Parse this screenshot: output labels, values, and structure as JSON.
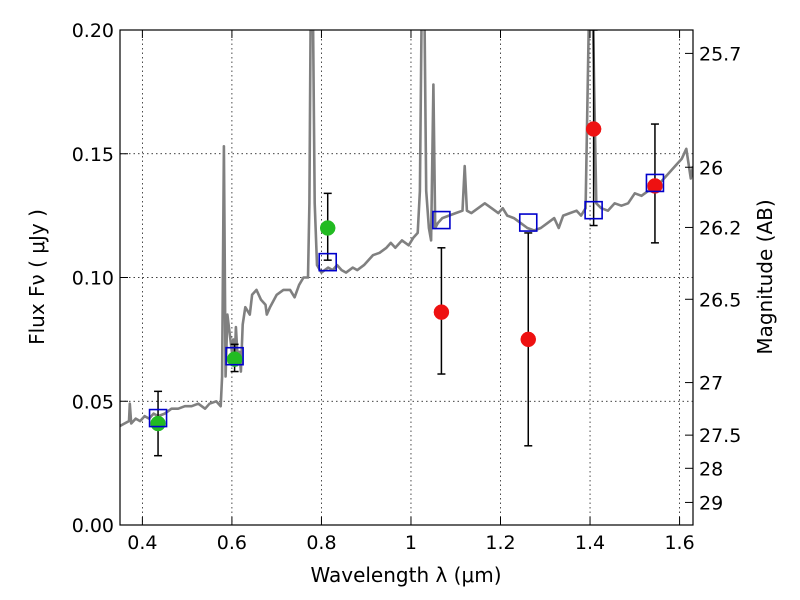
{
  "chart_data": {
    "type": "scatter",
    "xlabel": "Wavelength  λ (μm)",
    "ylabel": "Flux  Fν  ( μJy )",
    "ylabel_right": "Magnitude (AB)",
    "xlim": [
      0.35,
      1.63
    ],
    "ylim": [
      0.0,
      0.2
    ],
    "grid": true,
    "x_ticks": [
      {
        "value": 0.4,
        "label": "0.4"
      },
      {
        "value": 0.6,
        "label": "0.6"
      },
      {
        "value": 0.8,
        "label": "0.8"
      },
      {
        "value": 1.0,
        "label": "1"
      },
      {
        "value": 1.2,
        "label": "1.2"
      },
      {
        "value": 1.4,
        "label": "1.4"
      },
      {
        "value": 1.6,
        "label": "1.6"
      }
    ],
    "y_ticks": [
      {
        "value": 0.0,
        "label": "0.00"
      },
      {
        "value": 0.05,
        "label": "0.05"
      },
      {
        "value": 0.1,
        "label": "0.10"
      },
      {
        "value": 0.15,
        "label": "0.15"
      },
      {
        "value": 0.2,
        "label": "0.20"
      }
    ],
    "mag_ticks": [
      {
        "mag": 25.7,
        "label": "25.7"
      },
      {
        "mag": 26.0,
        "label": "26"
      },
      {
        "mag": 26.2,
        "label": "26.2"
      },
      {
        "mag": 26.5,
        "label": "26.5"
      },
      {
        "mag": 27.0,
        "label": "27"
      },
      {
        "mag": 27.5,
        "label": "27.5"
      },
      {
        "mag": 28.0,
        "label": "28"
      },
      {
        "mag": 29.0,
        "label": "29"
      }
    ],
    "template_spectrum": {
      "color": "#808080",
      "points": [
        [
          0.35,
          0.04
        ],
        [
          0.36,
          0.041
        ],
        [
          0.37,
          0.042
        ],
        [
          0.372,
          0.049
        ],
        [
          0.375,
          0.041
        ],
        [
          0.385,
          0.043
        ],
        [
          0.395,
          0.042
        ],
        [
          0.405,
          0.044
        ],
        [
          0.415,
          0.043
        ],
        [
          0.425,
          0.045
        ],
        [
          0.435,
          0.044
        ],
        [
          0.45,
          0.045
        ],
        [
          0.465,
          0.047
        ],
        [
          0.48,
          0.047
        ],
        [
          0.495,
          0.048
        ],
        [
          0.51,
          0.048
        ],
        [
          0.525,
          0.049
        ],
        [
          0.54,
          0.047
        ],
        [
          0.55,
          0.049
        ],
        [
          0.565,
          0.05
        ],
        [
          0.575,
          0.048
        ],
        [
          0.578,
          0.06
        ],
        [
          0.582,
          0.153
        ],
        [
          0.586,
          0.06
        ],
        [
          0.59,
          0.085
        ],
        [
          0.6,
          0.07
        ],
        [
          0.603,
          0.075
        ],
        [
          0.606,
          0.065
        ],
        [
          0.609,
          0.08
        ],
        [
          0.612,
          0.07
        ],
        [
          0.617,
          0.07
        ],
        [
          0.62,
          0.062
        ],
        [
          0.624,
          0.081
        ],
        [
          0.63,
          0.088
        ],
        [
          0.64,
          0.085
        ],
        [
          0.645,
          0.093
        ],
        [
          0.655,
          0.095
        ],
        [
          0.665,
          0.091
        ],
        [
          0.675,
          0.089
        ],
        [
          0.678,
          0.085
        ],
        [
          0.685,
          0.088
        ],
        [
          0.7,
          0.093
        ],
        [
          0.715,
          0.095
        ],
        [
          0.73,
          0.095
        ],
        [
          0.74,
          0.092
        ],
        [
          0.75,
          0.097
        ],
        [
          0.76,
          0.1
        ],
        [
          0.77,
          0.1
        ],
        [
          0.773,
          0.13
        ],
        [
          0.776,
          0.21
        ],
        [
          0.781,
          0.21
        ],
        [
          0.785,
          0.13
        ],
        [
          0.79,
          0.105
        ],
        [
          0.8,
          0.102
        ],
        [
          0.815,
          0.104
        ],
        [
          0.825,
          0.103
        ],
        [
          0.835,
          0.105
        ],
        [
          0.845,
          0.103
        ],
        [
          0.855,
          0.102
        ],
        [
          0.87,
          0.104
        ],
        [
          0.88,
          0.103
        ],
        [
          0.895,
          0.105
        ],
        [
          0.905,
          0.107
        ],
        [
          0.915,
          0.109
        ],
        [
          0.93,
          0.11
        ],
        [
          0.945,
          0.112
        ],
        [
          0.955,
          0.114
        ],
        [
          0.965,
          0.112
        ],
        [
          0.98,
          0.115
        ],
        [
          0.995,
          0.113
        ],
        [
          1.005,
          0.116
        ],
        [
          1.015,
          0.118
        ],
        [
          1.02,
          0.135
        ],
        [
          1.024,
          0.21
        ],
        [
          1.03,
          0.21
        ],
        [
          1.034,
          0.135
        ],
        [
          1.04,
          0.12
        ],
        [
          1.045,
          0.115
        ],
        [
          1.05,
          0.178
        ],
        [
          1.054,
          0.12
        ],
        [
          1.06,
          0.122
        ],
        [
          1.07,
          0.124
        ],
        [
          1.085,
          0.125
        ],
        [
          1.1,
          0.126
        ],
        [
          1.115,
          0.127
        ],
        [
          1.12,
          0.145
        ],
        [
          1.125,
          0.127
        ],
        [
          1.135,
          0.126
        ],
        [
          1.15,
          0.128
        ],
        [
          1.165,
          0.13
        ],
        [
          1.18,
          0.128
        ],
        [
          1.195,
          0.126
        ],
        [
          1.205,
          0.128
        ],
        [
          1.215,
          0.125
        ],
        [
          1.23,
          0.124
        ],
        [
          1.245,
          0.122
        ],
        [
          1.26,
          0.12
        ],
        [
          1.275,
          0.119
        ],
        [
          1.29,
          0.12
        ],
        [
          1.305,
          0.122
        ],
        [
          1.32,
          0.124
        ],
        [
          1.33,
          0.12
        ],
        [
          1.34,
          0.125
        ],
        [
          1.355,
          0.126
        ],
        [
          1.37,
          0.127
        ],
        [
          1.38,
          0.125
        ],
        [
          1.39,
          0.128
        ],
        [
          1.398,
          0.21
        ],
        [
          1.406,
          0.21
        ],
        [
          1.414,
          0.13
        ],
        [
          1.425,
          0.128
        ],
        [
          1.44,
          0.127
        ],
        [
          1.455,
          0.13
        ],
        [
          1.47,
          0.129
        ],
        [
          1.485,
          0.13
        ],
        [
          1.5,
          0.134
        ],
        [
          1.515,
          0.133
        ],
        [
          1.53,
          0.135
        ],
        [
          1.545,
          0.137
        ],
        [
          1.56,
          0.139
        ],
        [
          1.575,
          0.142
        ],
        [
          1.59,
          0.145
        ],
        [
          1.605,
          0.148
        ],
        [
          1.615,
          0.152
        ],
        [
          1.625,
          0.14
        ],
        [
          1.63,
          0.145
        ]
      ]
    },
    "series": [
      {
        "marker": "circle",
        "color": "#22bb22",
        "points": [
          {
            "x": 0.435,
            "y": 0.041
          },
          {
            "x": 0.606,
            "y": 0.067
          },
          {
            "x": 0.814,
            "y": 0.12
          }
        ]
      },
      {
        "marker": "circle",
        "color": "#ee1111",
        "points": [
          {
            "x": 1.068,
            "y": 0.086
          },
          {
            "x": 1.262,
            "y": 0.075
          },
          {
            "x": 1.408,
            "y": 0.16
          },
          {
            "x": 1.545,
            "y": 0.137
          }
        ]
      },
      {
        "marker": "square-open",
        "color": "#0000cc",
        "points": [
          {
            "x": 0.435,
            "y": 0.043
          },
          {
            "x": 0.606,
            "y": 0.068
          },
          {
            "x": 0.814,
            "y": 0.106
          },
          {
            "x": 1.068,
            "y": 0.123
          },
          {
            "x": 1.262,
            "y": 0.122
          },
          {
            "x": 1.408,
            "y": 0.127
          },
          {
            "x": 1.545,
            "y": 0.138
          }
        ]
      }
    ],
    "error_bars": {
      "color": "#000000",
      "items": [
        {
          "x": 0.435,
          "y_low": 0.028,
          "y_high": 0.054
        },
        {
          "x": 0.606,
          "y_low": 0.062,
          "y_high": 0.073
        },
        {
          "x": 0.814,
          "y_low": 0.107,
          "y_high": 0.134
        },
        {
          "x": 1.068,
          "y_low": 0.061,
          "y_high": 0.112
        },
        {
          "x": 1.262,
          "y_low": 0.032,
          "y_high": 0.118
        },
        {
          "x": 1.408,
          "y_low": 0.121,
          "y_high": 0.2
        },
        {
          "x": 1.545,
          "y_low": 0.114,
          "y_high": 0.162
        }
      ]
    }
  }
}
